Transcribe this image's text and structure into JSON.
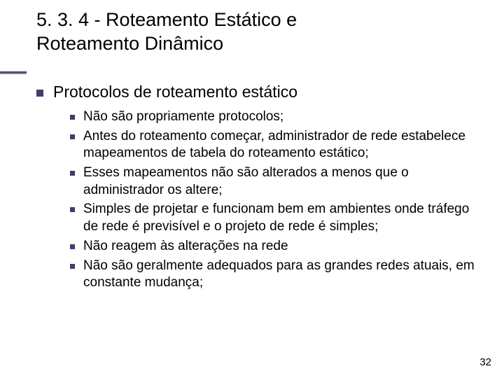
{
  "title_line1": "5. 3. 4 - Roteamento Estático e",
  "title_line2": "Roteamento Dinâmico",
  "section_heading": "Protocolos de roteamento estático",
  "bullets": [
    "Não são propriamente protocolos;",
    "Antes do roteamento começar, administrador de rede estabelece mapeamentos de tabela do roteamento estático;",
    "Esses mapeamentos não são alterados a menos que o administrador os altere;",
    "Simples de projetar e funcionam bem em ambientes onde tráfego de rede é previsível e o projeto de rede é simples;",
    "Não reagem às alterações na rede",
    "Não são geralmente adequados para as grandes redes atuais, em constante mudança;"
  ],
  "slide_number": "32",
  "colors": {
    "bullet_color": "#433b6b",
    "text_color": "#000000",
    "background": "#ffffff"
  }
}
